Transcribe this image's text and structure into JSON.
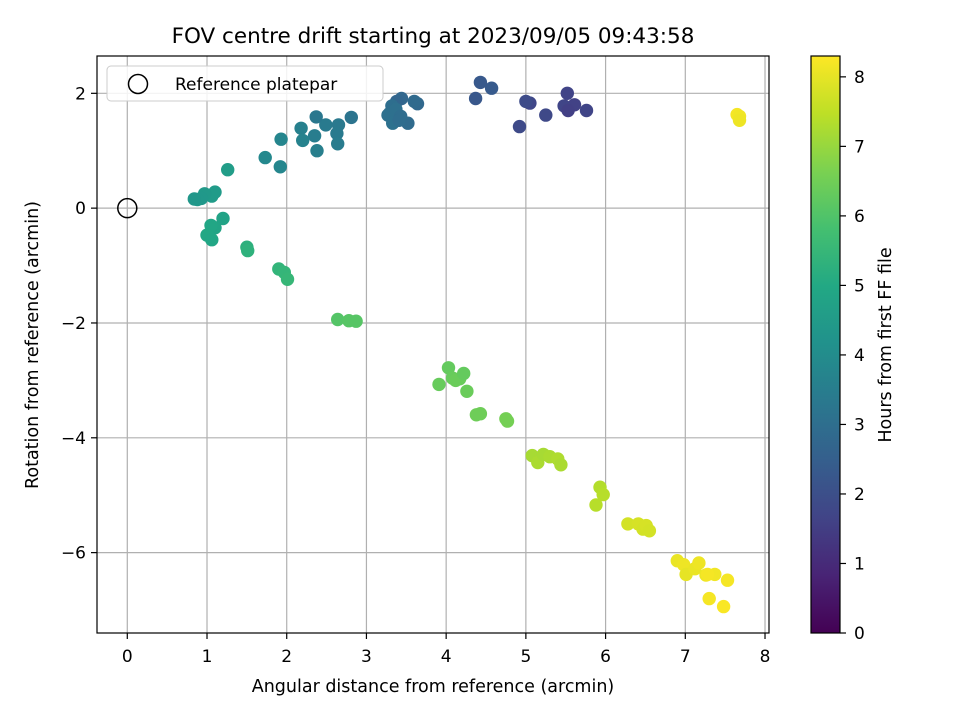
{
  "chart_data": {
    "type": "scatter",
    "title": "FOV centre drift starting at 2023/09/05 09:43:58",
    "xlabel": "Angular distance from reference (arcmin)",
    "ylabel": "Rotation from reference (arcmin)",
    "xlim": [
      -0.38,
      8.05
    ],
    "ylim": [
      -7.4,
      2.65
    ],
    "xticks": [
      0,
      1,
      2,
      3,
      4,
      5,
      6,
      7,
      8
    ],
    "yticks": [
      -6,
      -4,
      -2,
      0,
      2
    ],
    "xtick_labels": [
      "0",
      "1",
      "2",
      "3",
      "4",
      "5",
      "6",
      "7",
      "8"
    ],
    "ytick_labels": [
      "−6",
      "−4",
      "−2",
      "0",
      "2"
    ],
    "grid": true,
    "legend": {
      "placement": "top-left",
      "entries": [
        "Reference platepar"
      ]
    },
    "reference_point": {
      "x": 0,
      "y": 0,
      "label": "Reference platepar"
    },
    "colorbar": {
      "label": "Hours from first FF file",
      "range": [
        0,
        8.3
      ],
      "ticks": [
        0,
        1,
        2,
        3,
        4,
        5,
        6,
        7,
        8
      ],
      "tick_labels": [
        "0",
        "1",
        "2",
        "3",
        "4",
        "5",
        "6",
        "7",
        "8"
      ],
      "colormap": "viridis"
    },
    "series": [
      {
        "x": [
          7.65,
          7.68,
          7.68,
          5.76,
          5.61,
          5.52,
          5.48,
          5.53,
          5.25,
          5.05,
          5.0,
          4.92,
          4.57,
          4.43,
          4.37,
          3.64,
          3.6,
          3.52,
          3.44,
          3.38,
          3.32,
          3.29,
          3.27,
          3.33,
          3.37,
          3.43,
          3.41,
          2.81,
          2.65,
          2.63,
          2.64,
          2.49,
          2.37,
          2.35,
          2.38,
          2.18,
          2.2,
          1.93,
          1.92,
          1.73,
          1.26,
          1.1,
          1.06,
          0.97,
          0.93,
          0.88,
          0.84,
          1.2,
          1.1,
          1.05,
          1.0,
          1.06,
          1.5,
          1.51,
          1.9,
          1.97,
          2.01,
          2.64,
          2.78,
          2.87,
          3.91,
          4.03,
          4.08,
          4.12,
          4.17,
          4.22,
          4.26,
          4.38,
          4.43,
          4.75,
          4.77,
          5.08,
          5.15,
          5.22,
          5.3,
          5.4,
          5.44,
          5.88,
          5.93,
          5.97,
          6.28,
          6.41,
          6.47,
          6.51,
          6.55,
          6.9,
          6.98,
          7.01,
          7.12,
          7.17,
          7.26,
          7.3,
          7.37,
          7.28,
          7.48,
          7.53
        ],
        "y": [
          1.63,
          1.6,
          1.53,
          1.7,
          1.8,
          2.0,
          1.78,
          1.7,
          1.62,
          1.83,
          1.86,
          1.42,
          2.09,
          2.19,
          1.91,
          1.82,
          1.86,
          1.48,
          1.91,
          1.86,
          1.78,
          1.65,
          1.62,
          1.48,
          1.72,
          1.6,
          1.53,
          1.58,
          1.45,
          1.3,
          1.12,
          1.45,
          1.59,
          1.26,
          1.0,
          1.39,
          1.18,
          1.2,
          0.72,
          0.88,
          0.67,
          0.28,
          0.21,
          0.25,
          0.17,
          0.15,
          0.16,
          -0.18,
          -0.34,
          -0.3,
          -0.47,
          -0.55,
          -0.68,
          -0.74,
          -1.06,
          -1.12,
          -1.24,
          -1.94,
          -1.96,
          -1.97,
          -3.07,
          -2.78,
          -2.96,
          -3.0,
          -2.97,
          -2.88,
          -3.19,
          -3.6,
          -3.58,
          -3.67,
          -3.71,
          -4.31,
          -4.43,
          -4.29,
          -4.33,
          -4.37,
          -4.47,
          -5.17,
          -4.86,
          -4.99,
          -5.5,
          -5.5,
          -5.59,
          -5.53,
          -5.62,
          -6.14,
          -6.21,
          -6.38,
          -6.28,
          -6.18,
          -6.39,
          -6.8,
          -6.38,
          -6.38,
          -6.94,
          -6.48
        ],
        "hours": [
          8.2,
          8.15,
          8.1,
          1.7,
          1.6,
          1.65,
          1.7,
          1.55,
          1.8,
          1.75,
          1.9,
          1.85,
          2.35,
          2.3,
          2.25,
          2.8,
          2.85,
          2.9,
          2.75,
          2.7,
          3.0,
          3.0,
          3.05,
          3.1,
          3.05,
          2.95,
          2.95,
          3.2,
          3.35,
          3.4,
          3.45,
          3.4,
          3.3,
          3.5,
          3.55,
          3.6,
          3.65,
          3.75,
          3.8,
          3.85,
          4.6,
          4.5,
          4.5,
          4.45,
          4.4,
          4.4,
          4.35,
          4.8,
          4.85,
          4.9,
          4.95,
          4.9,
          5.25,
          5.3,
          5.4,
          5.45,
          5.5,
          6.05,
          6.1,
          6.1,
          6.35,
          6.3,
          6.35,
          6.4,
          6.4,
          6.3,
          6.4,
          6.45,
          6.45,
          6.55,
          6.55,
          7.2,
          7.25,
          7.2,
          7.25,
          7.3,
          7.25,
          7.4,
          7.35,
          7.4,
          7.75,
          7.8,
          7.75,
          7.8,
          7.75,
          8.05,
          8.1,
          8.0,
          8.05,
          8.1,
          8.1,
          8.2,
          8.15,
          8.2,
          8.25,
          8.2
        ]
      }
    ]
  }
}
